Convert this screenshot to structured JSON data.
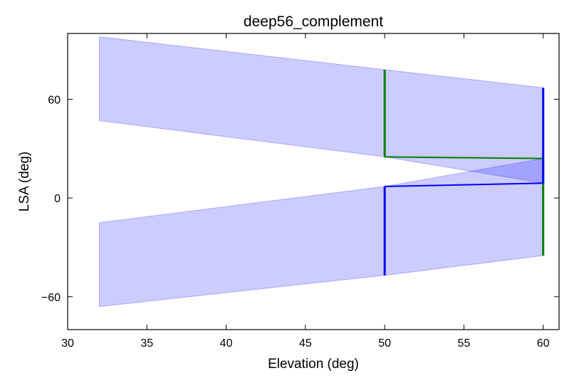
{
  "chart_data": {
    "type": "area",
    "title": "deep56_complement",
    "xlabel": "Elevation (deg)",
    "ylabel": "LSA (deg)",
    "xlim": [
      30,
      61
    ],
    "ylim": [
      -80,
      100
    ],
    "xticks": [
      30,
      35,
      40,
      45,
      50,
      55,
      60
    ],
    "xtick_labels": [
      "30",
      "35",
      "40",
      "45",
      "50",
      "55",
      "60"
    ],
    "yticks": [
      -60,
      0,
      60
    ],
    "ytick_labels": [
      "−60",
      "0",
      "60"
    ],
    "grid": false,
    "fill_color": "#0000ff",
    "fill_opacity": 0.2,
    "bands": [
      {
        "name": "upper-band",
        "x": [
          32,
          50,
          60
        ],
        "upper": [
          98,
          78,
          67
        ],
        "lower": [
          47,
          25,
          9
        ]
      },
      {
        "name": "lower-band",
        "x": [
          32,
          50,
          60
        ],
        "upper": [
          -15,
          7,
          24
        ],
        "lower": [
          -66,
          -47,
          -35
        ]
      }
    ],
    "series": [
      {
        "name": "green",
        "color": "#007f00",
        "segments": [
          {
            "x": [
              50,
              50
            ],
            "y": [
              78,
              25
            ]
          },
          {
            "x": [
              50,
              60
            ],
            "y": [
              25,
              24
            ]
          },
          {
            "x": [
              60,
              60
            ],
            "y": [
              24,
              -35
            ]
          }
        ]
      },
      {
        "name": "blue",
        "color": "#0000ff",
        "segments": [
          {
            "x": [
              50,
              50
            ],
            "y": [
              -47,
              7
            ]
          },
          {
            "x": [
              50,
              60
            ],
            "y": [
              7,
              9
            ]
          },
          {
            "x": [
              60,
              60
            ],
            "y": [
              9,
              67
            ]
          }
        ]
      }
    ]
  }
}
